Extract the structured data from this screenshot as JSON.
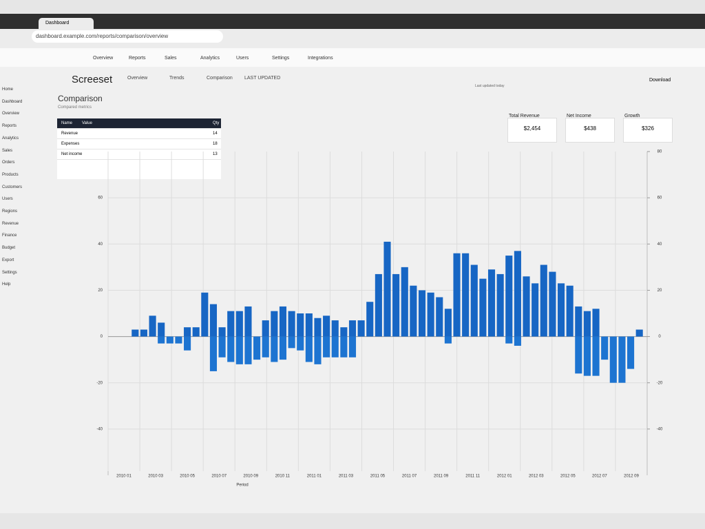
{
  "browser": {
    "tab": "Dashboard",
    "url": "dashboard.example.com/reports/comparison/overview"
  },
  "nav": [
    "Overview",
    "Reports",
    "Sales",
    "Analytics",
    "Users",
    "Settings",
    "Integrations"
  ],
  "sidebar": [
    "Home",
    "Dashboard",
    "Overview",
    "Reports",
    "Analytics",
    "Sales",
    "Orders",
    "Products",
    "Customers",
    "Users",
    "Regions",
    "Revenue",
    "Finance",
    "Budget",
    "Export",
    "Settings",
    "Help"
  ],
  "header": {
    "logo": "Screeset",
    "title": "Comparison",
    "subtitle": "Compared metrics",
    "tabs": [
      "Overview",
      "Trends",
      "Comparison",
      "LAST UPDATED"
    ],
    "link": "Last updated today",
    "button": "Download"
  },
  "table": {
    "header": [
      "Name",
      "Value",
      "Qty"
    ],
    "rows": [
      [
        "Revenue",
        "14"
      ],
      [
        "Expenses",
        "18"
      ],
      [
        "Net income",
        "13"
      ]
    ]
  },
  "stats": [
    {
      "label": "Total Revenue",
      "value": "$2,454"
    },
    {
      "label": "Net Income",
      "value": "$438"
    },
    {
      "label": "Growth",
      "value": "$326"
    }
  ],
  "chart": {
    "type": "bar",
    "x_title": "Period",
    "categories": [
      null,
      null,
      null,
      null,
      null,
      null,
      null,
      null,
      null,
      null,
      null,
      null,
      null,
      null,
      null,
      null,
      null,
      null,
      null,
      null,
      null,
      null,
      null,
      null,
      null,
      null,
      null,
      null,
      null,
      null,
      null,
      null,
      null,
      null,
      null,
      null,
      null,
      null,
      null,
      null,
      null,
      null,
      null,
      null,
      null,
      null,
      null,
      null,
      null,
      null,
      null,
      null,
      null,
      null,
      null,
      null,
      null,
      null,
      null
    ],
    "series": [
      {
        "color": "#1766c4",
        "values": [
          3,
          3,
          9,
          6,
          0,
          0,
          4,
          4,
          19,
          14,
          4,
          11,
          11,
          13,
          0,
          7,
          11,
          13,
          11,
          10,
          10,
          8,
          9,
          7,
          4,
          7,
          7,
          15,
          27,
          41,
          27,
          30,
          22,
          20,
          19,
          17,
          12,
          36,
          36,
          31,
          25,
          29,
          27,
          35,
          37,
          26,
          23,
          31,
          28,
          23,
          22,
          13,
          11,
          12,
          0,
          0,
          0,
          0,
          3
        ]
      },
      {
        "color": "#1d74d1",
        "values": [
          0,
          0,
          0,
          -3,
          -3,
          -3,
          -6,
          0,
          0,
          -15,
          -9,
          -11,
          -12,
          -12,
          -10,
          -9,
          -11,
          -10,
          -5,
          -6,
          -11,
          -12,
          -9,
          -9,
          -9,
          -9,
          0,
          0,
          0,
          0,
          0,
          0,
          0,
          0,
          0,
          0,
          -3,
          0,
          0,
          0,
          0,
          0,
          0,
          -3,
          -4,
          0,
          0,
          0,
          0,
          0,
          0,
          -16,
          -17,
          -17,
          -10,
          -20,
          -20,
          -14,
          0
        ]
      }
    ],
    "ylim": [
      -60,
      80
    ],
    "yticks": [
      -40,
      -20,
      0,
      20,
      40,
      60
    ],
    "y2lim": [
      -60,
      80
    ],
    "y2ticks": [
      -40,
      -20,
      0,
      20,
      40,
      60,
      80
    ],
    "x_labels": [
      "2010 01",
      "2010 03",
      "2010 05",
      "2010 07",
      "2010 09",
      "2010 11",
      "2011 01",
      "2011 03",
      "2011 05",
      "2011 07",
      "2011 09",
      "2011 11",
      "2012 01",
      "2012 03",
      "2012 05",
      "2012 07",
      "2012 09"
    ],
    "grid": true
  }
}
